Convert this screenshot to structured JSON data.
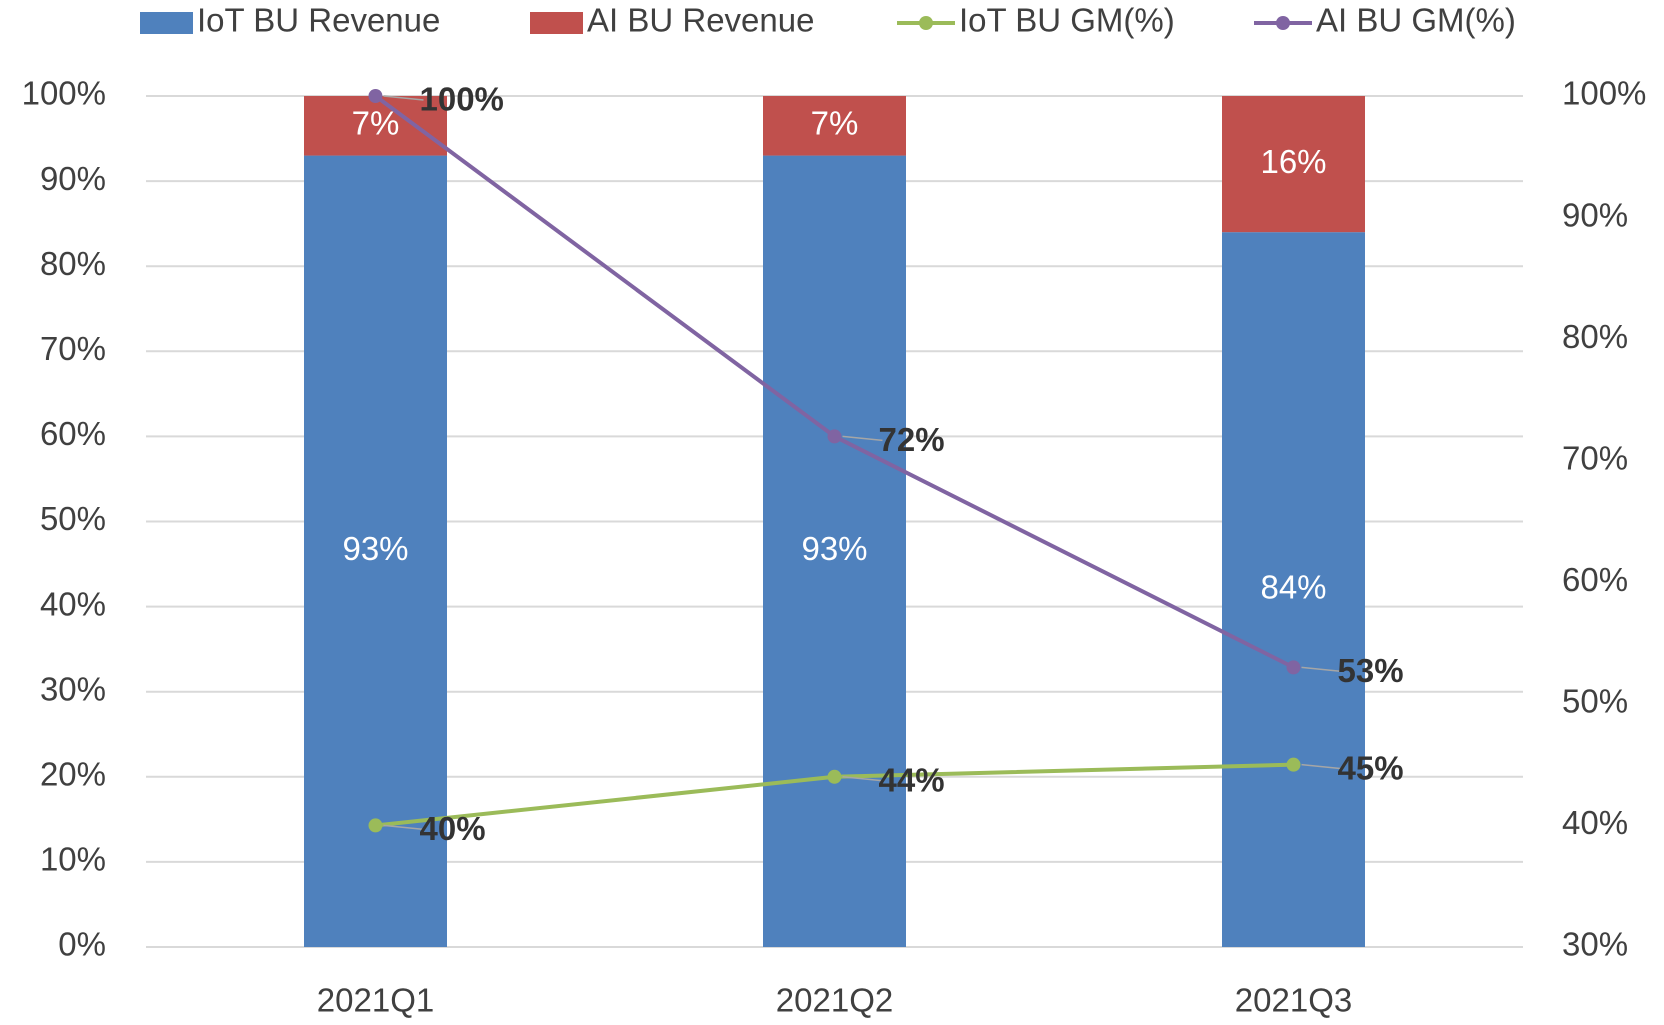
{
  "chart_data": {
    "type": "bar",
    "stacked": true,
    "categories": [
      "2021Q1",
      "2021Q2",
      "2021Q3"
    ],
    "series": [
      {
        "name": "IoT BU Revenue",
        "type": "bar",
        "color": "#4f81bd",
        "values": [
          93,
          93,
          84
        ],
        "value_labels": [
          "93%",
          "93%",
          "84%"
        ]
      },
      {
        "name": "AI BU Revenue",
        "type": "bar",
        "color": "#c0504d",
        "values": [
          7,
          7,
          16
        ],
        "value_labels": [
          "7%",
          "7%",
          "16%"
        ]
      },
      {
        "name": "IoT BU GM(%)",
        "type": "line",
        "axis": "y2",
        "color": "#9bbb59",
        "values": [
          40,
          44,
          45
        ],
        "value_labels": [
          "40%",
          "44%",
          "45%"
        ]
      },
      {
        "name": "AI BU GM(%)",
        "type": "line",
        "axis": "y2",
        "color": "#8064a2",
        "values": [
          100,
          72,
          53
        ],
        "value_labels": [
          "100%",
          "72%",
          "53%"
        ]
      }
    ],
    "ylim": [
      0,
      100
    ],
    "yticks": [
      {
        "value": 0,
        "label": "0%"
      },
      {
        "value": 10,
        "label": "10%"
      },
      {
        "value": 20,
        "label": "20%"
      },
      {
        "value": 30,
        "label": "30%"
      },
      {
        "value": 40,
        "label": "40%"
      },
      {
        "value": 50,
        "label": "50%"
      },
      {
        "value": 60,
        "label": "60%"
      },
      {
        "value": 70,
        "label": "70%"
      },
      {
        "value": 80,
        "label": "80%"
      },
      {
        "value": 90,
        "label": "90%"
      },
      {
        "value": 100,
        "label": "100%"
      }
    ],
    "y2lim": [
      30,
      100
    ],
    "y2ticks": [
      {
        "value": 30,
        "label": "30%"
      },
      {
        "value": 40,
        "label": "40%"
      },
      {
        "value": 50,
        "label": "50%"
      },
      {
        "value": 60,
        "label": "60%"
      },
      {
        "value": 70,
        "label": "70%"
      },
      {
        "value": 80,
        "label": "80%"
      },
      {
        "value": 90,
        "label": "90%"
      },
      {
        "value": 100,
        "label": "100%"
      }
    ],
    "grid": true,
    "legend": "top"
  }
}
